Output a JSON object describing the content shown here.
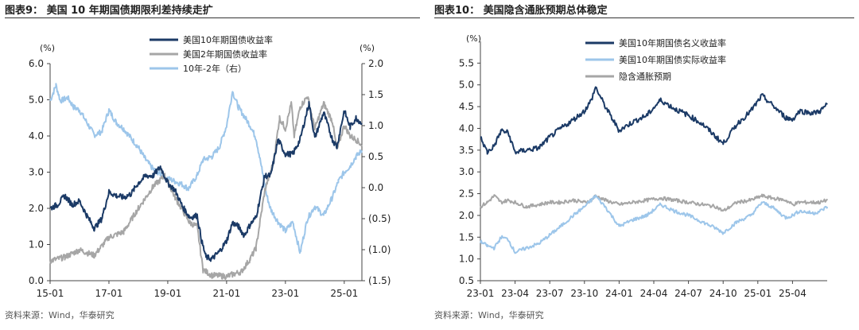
{
  "panels": [
    {
      "title": "图表9：  美国 10 年期国债期限利差持续走扩",
      "source": "资料来源：Wind，华泰研究"
    },
    {
      "title": "图表10：  美国隐含通胀预期总体稳定",
      "source": "资料来源：Wind，华泰研究"
    }
  ],
  "chart_data": [
    {
      "type": "line",
      "title": "美国10年期国债期限利差持续走扩",
      "x_tick_labels": [
        "15-01",
        "17-01",
        "19-01",
        "21-01",
        "23-01",
        "25-01"
      ],
      "x_range": [
        2015.0,
        2025.6
      ],
      "ylabel_left": "(%)",
      "ylabel_right": "(%)",
      "ylim_left": [
        0,
        6
      ],
      "y_ticks_left": [
        "0.0",
        "1.0",
        "2.0",
        "3.0",
        "4.0",
        "5.0",
        "6.0"
      ],
      "ylim_right": [
        -1.5,
        2.0
      ],
      "y_ticks_right": [
        "(1.5)",
        "(1.0)",
        "(0.5)",
        "0.0",
        "0.5",
        "1.0",
        "1.5",
        "2.0"
      ],
      "legend_position": "top-center",
      "series": [
        {
          "name": "美国10年期国债收益率",
          "color": "#1b3a66",
          "axis": "left",
          "points": [
            [
              2015.0,
              2.0
            ],
            [
              2015.25,
              2.1
            ],
            [
              2015.5,
              2.35
            ],
            [
              2015.75,
              2.1
            ],
            [
              2016.0,
              2.2
            ],
            [
              2016.25,
              1.8
            ],
            [
              2016.5,
              1.45
            ],
            [
              2016.75,
              1.7
            ],
            [
              2017.0,
              2.45
            ],
            [
              2017.25,
              2.35
            ],
            [
              2017.5,
              2.3
            ],
            [
              2017.75,
              2.4
            ],
            [
              2018.0,
              2.7
            ],
            [
              2018.25,
              2.9
            ],
            [
              2018.5,
              2.9
            ],
            [
              2018.75,
              3.15
            ],
            [
              2019.0,
              2.7
            ],
            [
              2019.25,
              2.5
            ],
            [
              2019.5,
              2.05
            ],
            [
              2019.75,
              1.75
            ],
            [
              2020.0,
              1.8
            ],
            [
              2020.15,
              1.1
            ],
            [
              2020.3,
              0.65
            ],
            [
              2020.5,
              0.6
            ],
            [
              2020.75,
              0.8
            ],
            [
              2021.0,
              1.1
            ],
            [
              2021.2,
              1.6
            ],
            [
              2021.4,
              1.5
            ],
            [
              2021.6,
              1.25
            ],
            [
              2021.8,
              1.55
            ],
            [
              2022.0,
              1.75
            ],
            [
              2022.3,
              2.9
            ],
            [
              2022.5,
              2.9
            ],
            [
              2022.75,
              3.9
            ],
            [
              2023.0,
              3.5
            ],
            [
              2023.25,
              3.5
            ],
            [
              2023.5,
              3.9
            ],
            [
              2023.8,
              4.9
            ],
            [
              2024.0,
              3.95
            ],
            [
              2024.3,
              4.65
            ],
            [
              2024.6,
              3.9
            ],
            [
              2024.75,
              3.7
            ],
            [
              2025.0,
              4.7
            ],
            [
              2025.2,
              4.25
            ],
            [
              2025.4,
              4.5
            ],
            [
              2025.6,
              4.35
            ]
          ]
        },
        {
          "name": "美国2年期国债收益率",
          "color": "#a6a6a6",
          "axis": "left",
          "points": [
            [
              2015.0,
              0.55
            ],
            [
              2015.5,
              0.65
            ],
            [
              2016.0,
              0.85
            ],
            [
              2016.5,
              0.7
            ],
            [
              2017.0,
              1.2
            ],
            [
              2017.5,
              1.35
            ],
            [
              2018.0,
              2.0
            ],
            [
              2018.5,
              2.6
            ],
            [
              2018.9,
              2.9
            ],
            [
              2019.25,
              2.3
            ],
            [
              2019.75,
              1.6
            ],
            [
              2020.0,
              1.5
            ],
            [
              2020.2,
              0.3
            ],
            [
              2020.5,
              0.15
            ],
            [
              2021.0,
              0.12
            ],
            [
              2021.5,
              0.25
            ],
            [
              2021.8,
              0.6
            ],
            [
              2022.0,
              0.9
            ],
            [
              2022.3,
              2.5
            ],
            [
              2022.6,
              3.3
            ],
            [
              2022.8,
              4.5
            ],
            [
              2023.0,
              4.2
            ],
            [
              2023.2,
              4.9
            ],
            [
              2023.3,
              4.0
            ],
            [
              2023.5,
              4.8
            ],
            [
              2023.75,
              5.1
            ],
            [
              2024.0,
              4.2
            ],
            [
              2024.3,
              4.9
            ],
            [
              2024.6,
              4.4
            ],
            [
              2024.75,
              3.6
            ],
            [
              2025.0,
              4.3
            ],
            [
              2025.2,
              4.0
            ],
            [
              2025.4,
              3.9
            ],
            [
              2025.6,
              3.75
            ]
          ]
        },
        {
          "name": "10年-2年（右）",
          "color": "#9dc6ea",
          "axis": "right",
          "points": [
            [
              2015.0,
              1.4
            ],
            [
              2015.2,
              1.65
            ],
            [
              2015.35,
              1.4
            ],
            [
              2015.6,
              1.45
            ],
            [
              2015.8,
              1.3
            ],
            [
              2016.0,
              1.25
            ],
            [
              2016.25,
              1.05
            ],
            [
              2016.5,
              0.85
            ],
            [
              2016.75,
              0.9
            ],
            [
              2017.0,
              1.25
            ],
            [
              2017.25,
              1.05
            ],
            [
              2017.5,
              0.95
            ],
            [
              2017.75,
              0.8
            ],
            [
              2018.0,
              0.65
            ],
            [
              2018.25,
              0.45
            ],
            [
              2018.5,
              0.3
            ],
            [
              2018.75,
              0.22
            ],
            [
              2019.0,
              0.15
            ],
            [
              2019.25,
              0.1
            ],
            [
              2019.5,
              0.05
            ],
            [
              2019.7,
              -0.02
            ],
            [
              2020.0,
              0.2
            ],
            [
              2020.2,
              0.45
            ],
            [
              2020.5,
              0.5
            ],
            [
              2020.75,
              0.65
            ],
            [
              2021.0,
              1.0
            ],
            [
              2021.2,
              1.55
            ],
            [
              2021.4,
              1.3
            ],
            [
              2021.6,
              1.15
            ],
            [
              2021.8,
              1.0
            ],
            [
              2022.0,
              0.8
            ],
            [
              2022.2,
              0.3
            ],
            [
              2022.35,
              -0.1
            ],
            [
              2022.5,
              -0.35
            ],
            [
              2022.75,
              -0.55
            ],
            [
              2023.0,
              -0.7
            ],
            [
              2023.25,
              -0.55
            ],
            [
              2023.5,
              -1.05
            ],
            [
              2023.75,
              -0.5
            ],
            [
              2024.0,
              -0.3
            ],
            [
              2024.3,
              -0.45
            ],
            [
              2024.6,
              -0.15
            ],
            [
              2024.8,
              0.1
            ],
            [
              2025.0,
              0.25
            ],
            [
              2025.2,
              0.35
            ],
            [
              2025.4,
              0.5
            ],
            [
              2025.6,
              0.6
            ]
          ]
        }
      ]
    },
    {
      "type": "line",
      "title": "美国隐含通胀预期总体稳定",
      "x_tick_labels": [
        "23-01",
        "23-04",
        "23-07",
        "23-10",
        "24-01",
        "24-04",
        "24-07",
        "24-10",
        "25-01",
        "25-04"
      ],
      "x_range": [
        2023.0,
        2025.5
      ],
      "ylabel": "(%)",
      "ylim": [
        0.5,
        6.0
      ],
      "y_ticks": [
        "0.5",
        "1.0",
        "1.5",
        "2.0",
        "2.5",
        "3.0",
        "3.5",
        "4.0",
        "4.5",
        "5.0",
        "5.5",
        "6.0"
      ],
      "legend_position": "top-center",
      "series": [
        {
          "name": "美国10年期国债名义收益率",
          "color": "#1b3a66",
          "points": [
            [
              2023.0,
              3.8
            ],
            [
              2023.05,
              3.45
            ],
            [
              2023.1,
              3.6
            ],
            [
              2023.15,
              3.95
            ],
            [
              2023.2,
              3.9
            ],
            [
              2023.25,
              3.45
            ],
            [
              2023.33,
              3.5
            ],
            [
              2023.42,
              3.55
            ],
            [
              2023.5,
              3.8
            ],
            [
              2023.58,
              4.0
            ],
            [
              2023.67,
              4.2
            ],
            [
              2023.75,
              4.4
            ],
            [
              2023.8,
              4.65
            ],
            [
              2023.83,
              4.95
            ],
            [
              2023.9,
              4.5
            ],
            [
              2024.0,
              3.95
            ],
            [
              2024.1,
              4.15
            ],
            [
              2024.2,
              4.3
            ],
            [
              2024.3,
              4.65
            ],
            [
              2024.4,
              4.45
            ],
            [
              2024.5,
              4.3
            ],
            [
              2024.6,
              4.1
            ],
            [
              2024.7,
              3.8
            ],
            [
              2024.75,
              3.65
            ],
            [
              2024.85,
              4.1
            ],
            [
              2024.95,
              4.4
            ],
            [
              2025.03,
              4.75
            ],
            [
              2025.1,
              4.55
            ],
            [
              2025.2,
              4.25
            ],
            [
              2025.25,
              4.2
            ],
            [
              2025.3,
              4.4
            ],
            [
              2025.4,
              4.35
            ],
            [
              2025.45,
              4.4
            ],
            [
              2025.5,
              4.55
            ]
          ]
        },
        {
          "name": "美国10年期国债实际收益率",
          "color": "#9dc6ea",
          "points": [
            [
              2023.0,
              1.4
            ],
            [
              2023.05,
              1.3
            ],
            [
              2023.1,
              1.25
            ],
            [
              2023.15,
              1.5
            ],
            [
              2023.2,
              1.45
            ],
            [
              2023.25,
              1.15
            ],
            [
              2023.33,
              1.25
            ],
            [
              2023.42,
              1.35
            ],
            [
              2023.5,
              1.55
            ],
            [
              2023.58,
              1.75
            ],
            [
              2023.67,
              2.0
            ],
            [
              2023.75,
              2.2
            ],
            [
              2023.8,
              2.35
            ],
            [
              2023.83,
              2.45
            ],
            [
              2023.9,
              2.2
            ],
            [
              2024.0,
              1.75
            ],
            [
              2024.1,
              1.9
            ],
            [
              2024.2,
              2.0
            ],
            [
              2024.3,
              2.25
            ],
            [
              2024.4,
              2.1
            ],
            [
              2024.5,
              2.0
            ],
            [
              2024.6,
              1.85
            ],
            [
              2024.7,
              1.7
            ],
            [
              2024.75,
              1.6
            ],
            [
              2024.85,
              1.85
            ],
            [
              2024.95,
              2.0
            ],
            [
              2025.03,
              2.3
            ],
            [
              2025.1,
              2.2
            ],
            [
              2025.2,
              1.95
            ],
            [
              2025.25,
              2.0
            ],
            [
              2025.3,
              2.1
            ],
            [
              2025.4,
              2.05
            ],
            [
              2025.45,
              2.1
            ],
            [
              2025.5,
              2.2
            ]
          ]
        },
        {
          "name": "隐含通胀预期",
          "color": "#a6a6a6",
          "points": [
            [
              2023.0,
              2.2
            ],
            [
              2023.05,
              2.3
            ],
            [
              2023.1,
              2.45
            ],
            [
              2023.15,
              2.3
            ],
            [
              2023.2,
              2.35
            ],
            [
              2023.25,
              2.3
            ],
            [
              2023.33,
              2.2
            ],
            [
              2023.42,
              2.25
            ],
            [
              2023.5,
              2.3
            ],
            [
              2023.58,
              2.3
            ],
            [
              2023.67,
              2.35
            ],
            [
              2023.75,
              2.3
            ],
            [
              2023.8,
              2.35
            ],
            [
              2023.83,
              2.45
            ],
            [
              2023.9,
              2.35
            ],
            [
              2024.0,
              2.25
            ],
            [
              2024.1,
              2.3
            ],
            [
              2024.2,
              2.35
            ],
            [
              2024.3,
              2.4
            ],
            [
              2024.4,
              2.35
            ],
            [
              2024.5,
              2.3
            ],
            [
              2024.6,
              2.25
            ],
            [
              2024.7,
              2.2
            ],
            [
              2024.75,
              2.1
            ],
            [
              2024.85,
              2.3
            ],
            [
              2024.95,
              2.35
            ],
            [
              2025.03,
              2.45
            ],
            [
              2025.1,
              2.4
            ],
            [
              2025.2,
              2.35
            ],
            [
              2025.25,
              2.25
            ],
            [
              2025.3,
              2.3
            ],
            [
              2025.4,
              2.3
            ],
            [
              2025.45,
              2.3
            ],
            [
              2025.5,
              2.35
            ]
          ]
        }
      ]
    }
  ]
}
